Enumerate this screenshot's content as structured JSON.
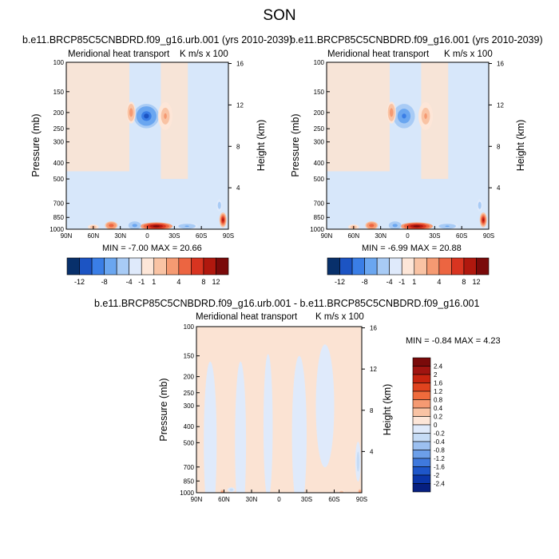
{
  "title": "SON",
  "colors": {
    "main_scale": [
      "#08306b",
      "#1c54c3",
      "#3a7ee6",
      "#6aa6f0",
      "#a8cbf5",
      "#dfeafb",
      "#fde6d8",
      "#f9c3a4",
      "#f59a72",
      "#ec6541",
      "#d83420",
      "#b0180e",
      "#7a0a0a"
    ],
    "diff_scale": [
      "#7a0a0a",
      "#a01410",
      "#c7240f",
      "#e0431e",
      "#ef6b3c",
      "#f59a72",
      "#f9c3a4",
      "#fde6d8",
      "#dfeafb",
      "#c6dcf6",
      "#9cc0f0",
      "#6c9fe9",
      "#3f79dd",
      "#1e56c9",
      "#0a35a8",
      "#061f80"
    ],
    "background_blue": "#d7e7fa",
    "background_orange": "#fbe3d3"
  },
  "chart_data": [
    {
      "id": "left",
      "type": "heatmap",
      "title": "b.e11.BRCP85C5CNBDRD.f09_g16.urb.001 (yrs 2010-2039)",
      "left_string": "Meridional heat transport",
      "right_string": "K m/s x 100",
      "ylabel": "Pressure (mb)",
      "ylabel_right": "Height (km)",
      "x_ticks": [
        "90N",
        "60N",
        "30N",
        "0",
        "30S",
        "60S",
        "90S"
      ],
      "y_ticks": [
        "100",
        "150",
        "200",
        "250",
        "300",
        "400",
        "500",
        "700",
        "850",
        "1000"
      ],
      "y_tick_values": [
        100,
        150,
        200,
        250,
        300,
        400,
        500,
        700,
        850,
        1000
      ],
      "height_ticks": [
        "16",
        "12",
        "8",
        "4"
      ],
      "height_tick_values": [
        16,
        12,
        8,
        4
      ],
      "xlim": [
        90,
        -90
      ],
      "ylim": [
        1000,
        100
      ],
      "min_label": "MIN =  -7.00   MAX =  20.66",
      "blobs": [
        {
          "lat": 1,
          "p": 210,
          "w": 14,
          "h": 70,
          "v": -11
        },
        {
          "lat": 18,
          "p": 200,
          "w": 5,
          "h": 60,
          "v": 3
        },
        {
          "lat": -20,
          "p": 210,
          "w": 8,
          "h": 80,
          "v": 2
        },
        {
          "lat": -10,
          "p": 960,
          "w": 18,
          "h": 120,
          "v": 13
        },
        {
          "lat": 14,
          "p": 950,
          "w": 7,
          "h": 110,
          "v": -6
        },
        {
          "lat": 40,
          "p": 950,
          "w": 7,
          "h": 110,
          "v": 5
        },
        {
          "lat": 60,
          "p": 970,
          "w": 6,
          "h": 80,
          "v": 2
        },
        {
          "lat": -44,
          "p": 960,
          "w": 12,
          "h": 90,
          "v": -5
        },
        {
          "lat": -84,
          "p": 880,
          "w": 4,
          "h": 180,
          "v": 8
        },
        {
          "lat": -80,
          "p": 720,
          "w": 3,
          "h": 120,
          "v": -2
        }
      ]
    },
    {
      "id": "right",
      "type": "heatmap",
      "title": "b.e11.BRCP85C5CNBDRD.f09_g16.001 (yrs 2010-2039)",
      "left_string": "Meridional heat transport",
      "right_string": "K m/s x 100",
      "ylabel": "Pressure (mb)",
      "ylabel_right": "Height (km)",
      "x_ticks": [
        "90N",
        "60N",
        "30N",
        "0",
        "30S",
        "60S",
        "90S"
      ],
      "y_ticks": [
        "100",
        "150",
        "200",
        "250",
        "300",
        "400",
        "500",
        "700",
        "850",
        "1000"
      ],
      "y_tick_values": [
        100,
        150,
        200,
        250,
        300,
        400,
        500,
        700,
        850,
        1000
      ],
      "height_ticks": [
        "16",
        "12",
        "8",
        "4"
      ],
      "height_tick_values": [
        16,
        12,
        8,
        4
      ],
      "xlim": [
        90,
        -90
      ],
      "ylim": [
        1000,
        100
      ],
      "min_label": "MIN =  -6.99   MAX =  20.88",
      "blobs": [
        {
          "lat": 4,
          "p": 210,
          "w": 12,
          "h": 70,
          "v": -10
        },
        {
          "lat": 18,
          "p": 200,
          "w": 5,
          "h": 60,
          "v": 3
        },
        {
          "lat": -20,
          "p": 210,
          "w": 8,
          "h": 80,
          "v": 2
        },
        {
          "lat": -10,
          "p": 960,
          "w": 18,
          "h": 120,
          "v": 13
        },
        {
          "lat": 14,
          "p": 950,
          "w": 7,
          "h": 110,
          "v": -6
        },
        {
          "lat": 40,
          "p": 950,
          "w": 7,
          "h": 110,
          "v": 5
        },
        {
          "lat": 60,
          "p": 970,
          "w": 6,
          "h": 80,
          "v": 2
        },
        {
          "lat": -44,
          "p": 960,
          "w": 12,
          "h": 90,
          "v": -5
        },
        {
          "lat": -84,
          "p": 880,
          "w": 4,
          "h": 180,
          "v": 8
        },
        {
          "lat": -80,
          "p": 720,
          "w": 3,
          "h": 120,
          "v": -2
        }
      ]
    },
    {
      "id": "diff",
      "type": "heatmap",
      "title": "b.e11.BRCP85C5CNBDRD.f09_g16.urb.001 - b.e11.BRCP85C5CNBDRD.f09_g16.001",
      "left_string": "Meridional heat transport",
      "right_string": "K m/s x 100",
      "ylabel": "Pressure (mb)",
      "ylabel_right": "Height (km)",
      "x_ticks": [
        "90N",
        "60N",
        "30N",
        "0",
        "30S",
        "60S",
        "90S"
      ],
      "y_ticks": [
        "100",
        "150",
        "200",
        "250",
        "300",
        "400",
        "500",
        "700",
        "850",
        "1000"
      ],
      "y_tick_values": [
        100,
        150,
        200,
        250,
        300,
        400,
        500,
        700,
        850,
        1000
      ],
      "height_ticks": [
        "16",
        "12",
        "8",
        "4"
      ],
      "height_tick_values": [
        16,
        12,
        8,
        4
      ],
      "xlim": [
        90,
        -90
      ],
      "ylim": [
        1000,
        100
      ],
      "min_label": "MIN =  -0.84   MAX =   4.23",
      "blobs": [
        {
          "lat": 75,
          "p": 500,
          "w": 7,
          "h": 900,
          "v": -0.1
        },
        {
          "lat": 42,
          "p": 500,
          "w": 6,
          "h": 900,
          "v": -0.1
        },
        {
          "lat": 12,
          "p": 400,
          "w": 5,
          "h": 700,
          "v": -0.1
        },
        {
          "lat": -22,
          "p": 450,
          "w": 8,
          "h": 900,
          "v": -0.1
        },
        {
          "lat": -50,
          "p": 300,
          "w": 10,
          "h": 500,
          "v": -0.1
        },
        {
          "lat": 62,
          "p": 990,
          "w": 2,
          "h": 20,
          "v": 0.5
        },
        {
          "lat": 52,
          "p": 960,
          "w": 4,
          "h": 60,
          "v": -0.3
        },
        {
          "lat": -68,
          "p": 990,
          "w": 4,
          "h": 30,
          "v": 0.3
        },
        {
          "lat": -86,
          "p": 650,
          "w": 3,
          "h": 350,
          "v": -0.3
        },
        {
          "lat": -88,
          "p": 985,
          "w": 2,
          "h": 25,
          "v": 0.7
        }
      ]
    }
  ],
  "main_colorbar": {
    "labels": [
      "-12",
      "-8",
      "-4",
      "-1",
      "1",
      "4",
      "8",
      "12"
    ]
  },
  "diff_colorbar": {
    "labels": [
      "2.4",
      "2",
      "1.6",
      "1.2",
      "0.8",
      "0.4",
      "0.2",
      "0",
      "-0.2",
      "-0.4",
      "-0.8",
      "-1.2",
      "-1.6",
      "-2",
      "-2.4"
    ]
  }
}
